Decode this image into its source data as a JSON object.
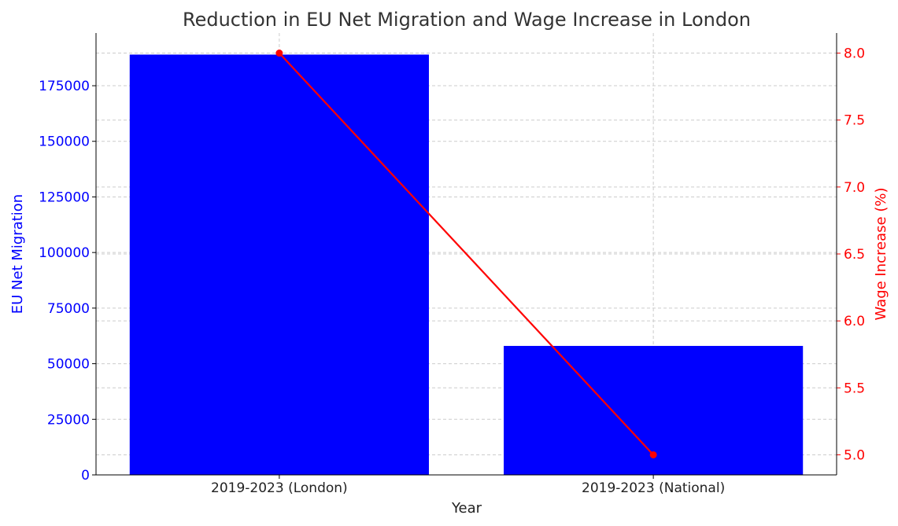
{
  "chart_data": {
    "type": "bar+line",
    "title": "Reduction in EU Net Migration and Wage Increase in London",
    "xlabel": "Year",
    "categories": [
      "2019-2023 (London)",
      "2019-2023 (National)"
    ],
    "series": [
      {
        "name": "EU Net Migration",
        "type": "bar",
        "axis": "left",
        "values": [
          189000,
          58000
        ],
        "color": "#0000ff"
      },
      {
        "name": "Wage Increase (%)",
        "type": "line",
        "axis": "right",
        "values": [
          8.0,
          5.0
        ],
        "color": "#ff0000"
      }
    ],
    "left_axis": {
      "label": "EU Net Migration",
      "ylim": [
        0,
        198700
      ],
      "ticks": [
        0,
        25000,
        50000,
        75000,
        100000,
        125000,
        150000,
        175000
      ],
      "color": "#0000ff"
    },
    "right_axis": {
      "label": "Wage Increase (%)",
      "ylim": [
        4.85,
        8.15
      ],
      "ticks": [
        "5.0",
        "5.5",
        "6.0",
        "6.5",
        "7.0",
        "7.5",
        "8.0"
      ],
      "color": "#ff0000"
    },
    "grid": true
  }
}
